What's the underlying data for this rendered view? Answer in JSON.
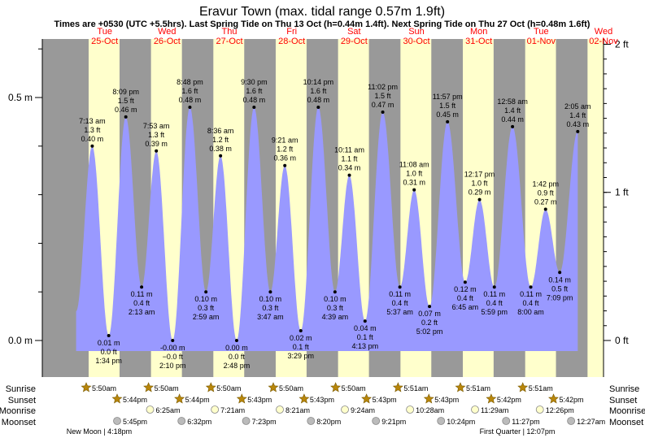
{
  "chart_data": {
    "type": "area",
    "title": "Eravur Town (max. tidal range 0.57m 1.9ft)",
    "subtitle": "Times are +0530 (UTC +5.5hrs). Last Spring Tide on Thu 13 Oct (h=0.44m 1.4ft). Next Spring Tide on Thu 27 Oct (h=0.48m 1.6ft)",
    "x_unit": "hours from 24-Oct 12:00 (local)",
    "ylim_m": [
      -0.03,
      0.6
    ],
    "ylim_ft": [
      -0.1,
      2.0
    ],
    "y_left_ticks": [
      {
        "value": 0.0,
        "label": "0.0 m"
      },
      {
        "value": 0.5,
        "label": "0.5 m"
      }
    ],
    "y_right_ticks": [
      {
        "value": 0,
        "label": "0 ft"
      },
      {
        "value": 1,
        "label": "1 ft"
      },
      {
        "value": 2,
        "label": "2 ft"
      }
    ],
    "days": [
      {
        "dow": "Tue",
        "date": "25-Oct"
      },
      {
        "dow": "Wed",
        "date": "26-Oct"
      },
      {
        "dow": "Thu",
        "date": "27-Oct"
      },
      {
        "dow": "Fri",
        "date": "28-Oct"
      },
      {
        "dow": "Sat",
        "date": "29-Oct"
      },
      {
        "dow": "Sun",
        "date": "30-Oct"
      },
      {
        "dow": "Mon",
        "date": "31-Oct"
      },
      {
        "dow": "Tue",
        "date": "01-Nov"
      },
      {
        "dow": "Wed",
        "date": "02-Nov"
      }
    ],
    "daylight": [
      {
        "rise": "5:50am",
        "set": "5:44pm"
      },
      {
        "rise": "5:50am",
        "set": "5:44pm"
      },
      {
        "rise": "5:50am",
        "set": "5:43pm"
      },
      {
        "rise": "5:50am",
        "set": "5:43pm"
      },
      {
        "rise": "5:50am",
        "set": "5:43pm"
      },
      {
        "rise": "5:51am",
        "set": "5:43pm"
      },
      {
        "rise": "5:51am",
        "set": "5:42pm"
      },
      {
        "rise": "5:51am",
        "set": "5:42pm"
      }
    ],
    "tides": [
      {
        "time": "7:13 am",
        "ft": "1.3 ft",
        "m": "0.40 m",
        "h": 0.4,
        "t": 19.22,
        "type": "high"
      },
      {
        "time": "1:34 pm",
        "ft": "0.0 ft",
        "m": "0.01 m",
        "h": 0.01,
        "t": 25.57,
        "type": "low"
      },
      {
        "time": "8:09 pm",
        "ft": "1.5 ft",
        "m": "0.46 m",
        "h": 0.46,
        "t": 32.15,
        "type": "high"
      },
      {
        "time": "2:13 am",
        "ft": "0.4 ft",
        "m": "0.11 m",
        "h": 0.11,
        "t": 38.22,
        "type": "low"
      },
      {
        "time": "7:53 am",
        "ft": "1.3 ft",
        "m": "0.39 m",
        "h": 0.39,
        "t": 43.88,
        "type": "high"
      },
      {
        "time": "2:10 pm",
        "ft": "−0.0 ft",
        "m": "-0.00 m",
        "h": 0.0,
        "t": 50.17,
        "type": "low"
      },
      {
        "time": "8:48 pm",
        "ft": "1.6 ft",
        "m": "0.48 m",
        "h": 0.48,
        "t": 56.8,
        "type": "high"
      },
      {
        "time": "2:59 am",
        "ft": "0.3 ft",
        "m": "0.10 m",
        "h": 0.1,
        "t": 62.98,
        "type": "low"
      },
      {
        "time": "8:36 am",
        "ft": "1.2 ft",
        "m": "0.38 m",
        "h": 0.38,
        "t": 68.6,
        "type": "high"
      },
      {
        "time": "2:48 pm",
        "ft": "0.0 ft",
        "m": "0.00 m",
        "h": 0.0,
        "t": 74.8,
        "type": "low"
      },
      {
        "time": "9:30 pm",
        "ft": "1.6 ft",
        "m": "0.48 m",
        "h": 0.48,
        "t": 81.5,
        "type": "high"
      },
      {
        "time": "3:47 am",
        "ft": "0.3 ft",
        "m": "0.10 m",
        "h": 0.1,
        "t": 87.78,
        "type": "low"
      },
      {
        "time": "9:21 am",
        "ft": "1.2 ft",
        "m": "0.36 m",
        "h": 0.36,
        "t": 93.35,
        "type": "high"
      },
      {
        "time": "3:29 pm",
        "ft": "0.1 ft",
        "m": "0.02 m",
        "h": 0.02,
        "t": 99.48,
        "type": "low"
      },
      {
        "time": "10:14 pm",
        "ft": "1.6 ft",
        "m": "0.48 m",
        "h": 0.48,
        "t": 106.23,
        "type": "high"
      },
      {
        "time": "4:39 am",
        "ft": "0.3 ft",
        "m": "0.10 m",
        "h": 0.1,
        "t": 112.65,
        "type": "low"
      },
      {
        "time": "10:11 am",
        "ft": "1.1 ft",
        "m": "0.34 m",
        "h": 0.34,
        "t": 118.18,
        "type": "high"
      },
      {
        "time": "4:13 pm",
        "ft": "0.1 ft",
        "m": "0.04 m",
        "h": 0.04,
        "t": 124.22,
        "type": "low"
      },
      {
        "time": "11:02 pm",
        "ft": "1.5 ft",
        "m": "0.47 m",
        "h": 0.47,
        "t": 131.03,
        "type": "high"
      },
      {
        "time": "5:37 am",
        "ft": "0.4 ft",
        "m": "0.11 m",
        "h": 0.11,
        "t": 137.62,
        "type": "low"
      },
      {
        "time": "11:08 am",
        "ft": "1.0 ft",
        "m": "0.31 m",
        "h": 0.31,
        "t": 143.13,
        "type": "high"
      },
      {
        "time": "5:02 pm",
        "ft": "0.2 ft",
        "m": "0.07 m",
        "h": 0.07,
        "t": 149.03,
        "type": "low"
      },
      {
        "time": "11:57 pm",
        "ft": "1.5 ft",
        "m": "0.45 m",
        "h": 0.45,
        "t": 155.95,
        "type": "high"
      },
      {
        "time": "6:45 am",
        "ft": "0.4 ft",
        "m": "0.12 m",
        "h": 0.12,
        "t": 162.75,
        "type": "low"
      },
      {
        "time": "12:17 pm",
        "ft": "1.0 ft",
        "m": "0.29 m",
        "h": 0.29,
        "t": 168.28,
        "type": "high"
      },
      {
        "time": "5:59 pm",
        "ft": "0.4 ft",
        "m": "0.11 m",
        "h": 0.11,
        "t": 173.98,
        "type": "low"
      },
      {
        "time": "12:58 am",
        "ft": "1.4 ft",
        "m": "0.44 m",
        "h": 0.44,
        "t": 180.97,
        "type": "high"
      },
      {
        "time": "8:00 am",
        "ft": "0.4 ft",
        "m": "0.11 m",
        "h": 0.11,
        "t": 188.0,
        "type": "low"
      },
      {
        "time": "1:42 pm",
        "ft": "0.9 ft",
        "m": "0.27 m",
        "h": 0.27,
        "t": 193.7,
        "type": "high"
      },
      {
        "time": "7:09 pm",
        "ft": "0.5 ft",
        "m": "0.14 m",
        "h": 0.14,
        "t": 199.15,
        "type": "low"
      },
      {
        "time": "2:05 am",
        "ft": "1.4 ft",
        "m": "0.43 m",
        "h": 0.43,
        "t": 206.08,
        "type": "high"
      }
    ],
    "sunrise": [
      "5:50am",
      "5:50am",
      "5:50am",
      "5:50am",
      "5:50am",
      "5:51am",
      "5:51am",
      "5:51am"
    ],
    "sunset": [
      "5:44pm",
      "5:44pm",
      "5:43pm",
      "5:43pm",
      "5:43pm",
      "5:43pm",
      "5:42pm",
      "5:42pm"
    ],
    "moonrise": [
      "6:25am",
      "7:21am",
      "8:21am",
      "9:24am",
      "10:28am",
      "11:29am",
      "12:26pm"
    ],
    "moonset": [
      "5:45pm",
      "6:32pm",
      "7:23pm",
      "8:20pm",
      "9:21pm",
      "10:24pm",
      "11:27pm",
      "12:27am"
    ],
    "row_labels": {
      "sunrise": "Sunrise",
      "sunset": "Sunset",
      "moonrise": "Moonrise",
      "moonset": "Moonset"
    },
    "phase_notes": [
      {
        "text": "New Moon | 4:18pm"
      },
      {
        "text": "First Quarter | 12:07pm"
      }
    ],
    "colors": {
      "night": "#999999",
      "day": "#ffffcc",
      "water": "#9999ff",
      "day_label": "#ff0000",
      "sun_icon": "#b8860b",
      "moonrise_icon": "#ffffcc",
      "moonset_icon": "#bbbbbb"
    }
  }
}
